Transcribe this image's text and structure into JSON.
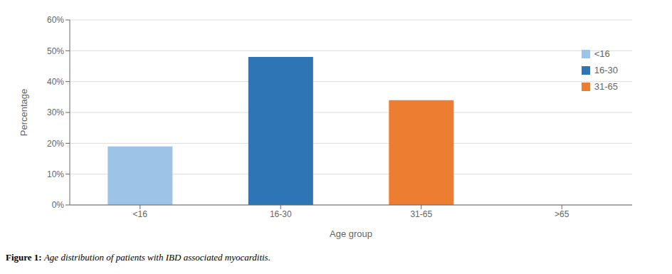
{
  "chart_data": {
    "type": "bar",
    "title": "Figure 1:",
    "subtitle": "Age distribution of patients with IBD associated myocarditis.",
    "categories": [
      "<16",
      "16-30",
      "31-65",
      ">65"
    ],
    "values": [
      0.19,
      0.48,
      0.34,
      0.0
    ],
    "colors": [
      "#9DC3E6",
      "#2E75B6",
      "#ED7D31",
      "#FFFFFF"
    ],
    "xlabel": "Age group",
    "ylabel": "Percentage",
    "ylim": [
      0,
      0.6
    ],
    "yticks": [
      {
        "value": 0.0,
        "label": "0%"
      },
      {
        "value": 0.1,
        "label": "10%"
      },
      {
        "value": 0.2,
        "label": "20%"
      },
      {
        "value": 0.3,
        "label": "30%"
      },
      {
        "value": 0.4,
        "label": "40%"
      },
      {
        "value": 0.5,
        "label": "50%"
      },
      {
        "value": 0.6,
        "label": "60%"
      }
    ],
    "grid": true,
    "legend": "upper right"
  }
}
